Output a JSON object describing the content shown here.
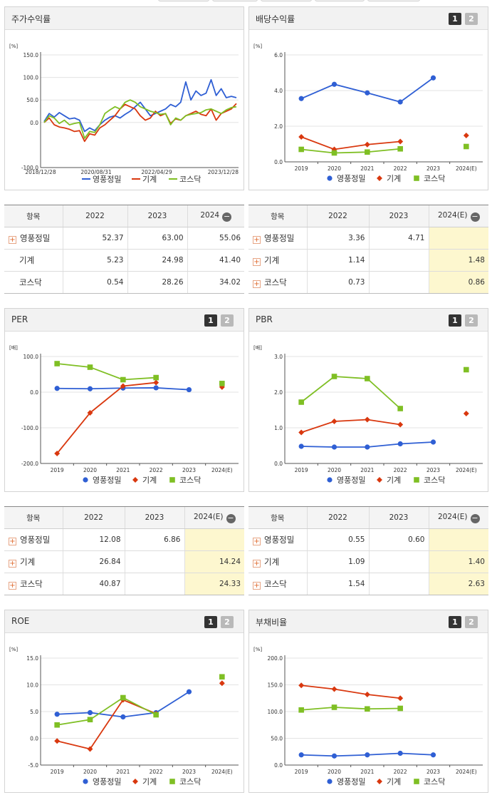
{
  "legend_names": [
    "영풍정밀",
    "기계",
    "코스닥"
  ],
  "colors": {
    "s1": "#2f5fd4",
    "s2": "#d9380f",
    "s3": "#7fbf24"
  },
  "buttons": {
    "one": "1",
    "two": "2",
    "minus": "−",
    "plus": "+"
  },
  "panels": {
    "stock": {
      "title": "주가수익률"
    },
    "dividend": {
      "title": "배당수익률"
    },
    "per": {
      "title": "PER"
    },
    "pbr": {
      "title": "PBR"
    },
    "roe": {
      "title": "ROE"
    },
    "debt": {
      "title": "부채비율"
    }
  },
  "tables": {
    "stock": {
      "headers": [
        "항목",
        "2022",
        "2023",
        "2024"
      ],
      "rows": [
        {
          "name": "영풍정밀",
          "v": [
            "52.37",
            "63.00",
            "55.06"
          ]
        },
        {
          "name": "기계",
          "v": [
            "5.23",
            "24.98",
            "41.40"
          ]
        },
        {
          "name": "코스닥",
          "v": [
            "0.54",
            "28.26",
            "34.02"
          ]
        }
      ]
    },
    "dividend": {
      "headers": [
        "항목",
        "2022",
        "2023",
        "2024(E)"
      ],
      "rows": [
        {
          "name": "영풍정밀",
          "v": [
            "3.36",
            "4.71",
            ""
          ]
        },
        {
          "name": "기계",
          "v": [
            "1.14",
            "",
            "1.48"
          ]
        },
        {
          "name": "코스닥",
          "v": [
            "0.73",
            "",
            "0.86"
          ]
        }
      ]
    },
    "per": {
      "headers": [
        "항목",
        "2022",
        "2023",
        "2024(E)"
      ],
      "rows": [
        {
          "name": "영풍정밀",
          "v": [
            "12.08",
            "6.86",
            ""
          ]
        },
        {
          "name": "기계",
          "v": [
            "26.84",
            "",
            "14.24"
          ]
        },
        {
          "name": "코스닥",
          "v": [
            "40.87",
            "",
            "24.33"
          ]
        }
      ]
    },
    "pbr": {
      "headers": [
        "항목",
        "2022",
        "2023",
        "2024(E)"
      ],
      "rows": [
        {
          "name": "영풍정밀",
          "v": [
            "0.55",
            "0.60",
            ""
          ]
        },
        {
          "name": "기계",
          "v": [
            "1.09",
            "",
            "1.40"
          ]
        },
        {
          "name": "코스닥",
          "v": [
            "1.54",
            "",
            "2.63"
          ]
        }
      ]
    }
  },
  "chart_data": [
    {
      "id": "stock",
      "type": "line",
      "unit": "[%]",
      "ylim": [
        -100,
        150
      ],
      "yticks": [
        "150.0",
        "100.0",
        "50.0",
        "0.0",
        "-100.0"
      ],
      "xticks": [
        "2018/12/28",
        "2020/08/31",
        "2022/04/29",
        "2023/12/28"
      ],
      "series": [
        {
          "name": "영풍정밀",
          "values": [
            2,
            20,
            12,
            22,
            15,
            8,
            10,
            5,
            -20,
            -12,
            -18,
            -5,
            5,
            12,
            15,
            10,
            18,
            25,
            35,
            45,
            30,
            15,
            20,
            25,
            30,
            40,
            35,
            45,
            90,
            50,
            70,
            60,
            65,
            95,
            60,
            75,
            55,
            58,
            55
          ]
        },
        {
          "name": "기계",
          "values": [
            0,
            10,
            -5,
            -10,
            -12,
            -15,
            -20,
            -18,
            -42,
            -25,
            -28,
            -12,
            -5,
            5,
            15,
            30,
            40,
            35,
            30,
            15,
            5,
            10,
            25,
            15,
            20,
            -2,
            8,
            5,
            15,
            20,
            25,
            18,
            15,
            30,
            5,
            20,
            25,
            30,
            42
          ]
        },
        {
          "name": "코스닥",
          "values": [
            0,
            15,
            10,
            -2,
            5,
            -5,
            -2,
            0,
            -35,
            -20,
            -22,
            -5,
            20,
            28,
            35,
            30,
            45,
            50,
            45,
            35,
            30,
            25,
            22,
            18,
            20,
            -5,
            10,
            5,
            15,
            18,
            20,
            22,
            28,
            30,
            25,
            20,
            28,
            33,
            35
          ]
        }
      ]
    },
    {
      "id": "dividend",
      "type": "line",
      "unit": "[%]",
      "ylim": [
        0,
        6
      ],
      "yticks": [
        "6.0",
        "4.0",
        "2.0",
        "0.0"
      ],
      "categories": [
        "2019",
        "2020",
        "2021",
        "2022",
        "2023",
        "2024(E)"
      ],
      "series": [
        {
          "name": "영풍정밀",
          "values": [
            3.55,
            4.35,
            3.87,
            3.36,
            4.71,
            null
          ]
        },
        {
          "name": "기계",
          "values": [
            1.4,
            0.7,
            0.97,
            1.14,
            null,
            1.48
          ]
        },
        {
          "name": "코스닥",
          "values": [
            0.7,
            0.5,
            0.55,
            0.73,
            null,
            0.86
          ]
        }
      ]
    },
    {
      "id": "per",
      "type": "line",
      "unit": "[배]",
      "ylim": [
        -200,
        100
      ],
      "yticks": [
        "100.0",
        "0.0",
        "-100.0",
        "-200.0"
      ],
      "categories": [
        "2019",
        "2020",
        "2021",
        "2022",
        "2023",
        "2024(E)"
      ],
      "series": [
        {
          "name": "영풍정밀",
          "values": [
            10.5,
            9.5,
            11.5,
            12.08,
            6.86,
            null
          ]
        },
        {
          "name": "기계",
          "values": [
            -172,
            -58,
            17,
            26.84,
            null,
            14.24
          ]
        },
        {
          "name": "코스닥",
          "values": [
            80,
            70,
            35,
            40.87,
            null,
            24.33
          ]
        }
      ]
    },
    {
      "id": "pbr",
      "type": "line",
      "unit": "[배]",
      "ylim": [
        0,
        3
      ],
      "yticks": [
        "3.0",
        "2.0",
        "1.0",
        "0.0"
      ],
      "categories": [
        "2019",
        "2020",
        "2021",
        "2022",
        "2023",
        "2024(E)"
      ],
      "series": [
        {
          "name": "영풍정밀",
          "values": [
            0.48,
            0.46,
            0.46,
            0.55,
            0.6,
            null
          ]
        },
        {
          "name": "기계",
          "values": [
            0.87,
            1.18,
            1.23,
            1.09,
            null,
            1.4
          ]
        },
        {
          "name": "코스닥",
          "values": [
            1.72,
            2.44,
            2.38,
            1.54,
            null,
            2.63
          ]
        }
      ]
    },
    {
      "id": "roe",
      "type": "line",
      "unit": "[%]",
      "ylim": [
        -5,
        15
      ],
      "yticks": [
        "15.0",
        "10.0",
        "5.0",
        "0.0",
        "-5.0"
      ],
      "categories": [
        "2019",
        "2020",
        "2021",
        "2022",
        "2023",
        "2024(E)"
      ],
      "series": [
        {
          "name": "영풍정밀",
          "values": [
            4.5,
            4.8,
            4.0,
            4.8,
            8.7,
            null
          ]
        },
        {
          "name": "기계",
          "values": [
            -0.5,
            -2.0,
            7.2,
            4.6,
            null,
            10.3
          ]
        },
        {
          "name": "코스닥",
          "values": [
            2.5,
            3.5,
            7.6,
            4.4,
            null,
            11.5
          ]
        }
      ]
    },
    {
      "id": "debt",
      "type": "line",
      "unit": "[%]",
      "ylim": [
        0,
        200
      ],
      "yticks": [
        "200.0",
        "150.0",
        "100.0",
        "50.0",
        "0.0"
      ],
      "categories": [
        "2019",
        "2020",
        "2021",
        "2022",
        "2023",
        "2024(E)"
      ],
      "series": [
        {
          "name": "영풍정밀",
          "values": [
            19,
            17,
            19,
            22,
            19,
            null
          ]
        },
        {
          "name": "기계",
          "values": [
            149,
            142,
            132,
            125,
            null,
            null
          ]
        },
        {
          "name": "코스닥",
          "values": [
            103,
            108,
            105,
            106,
            null,
            null
          ]
        }
      ]
    }
  ]
}
